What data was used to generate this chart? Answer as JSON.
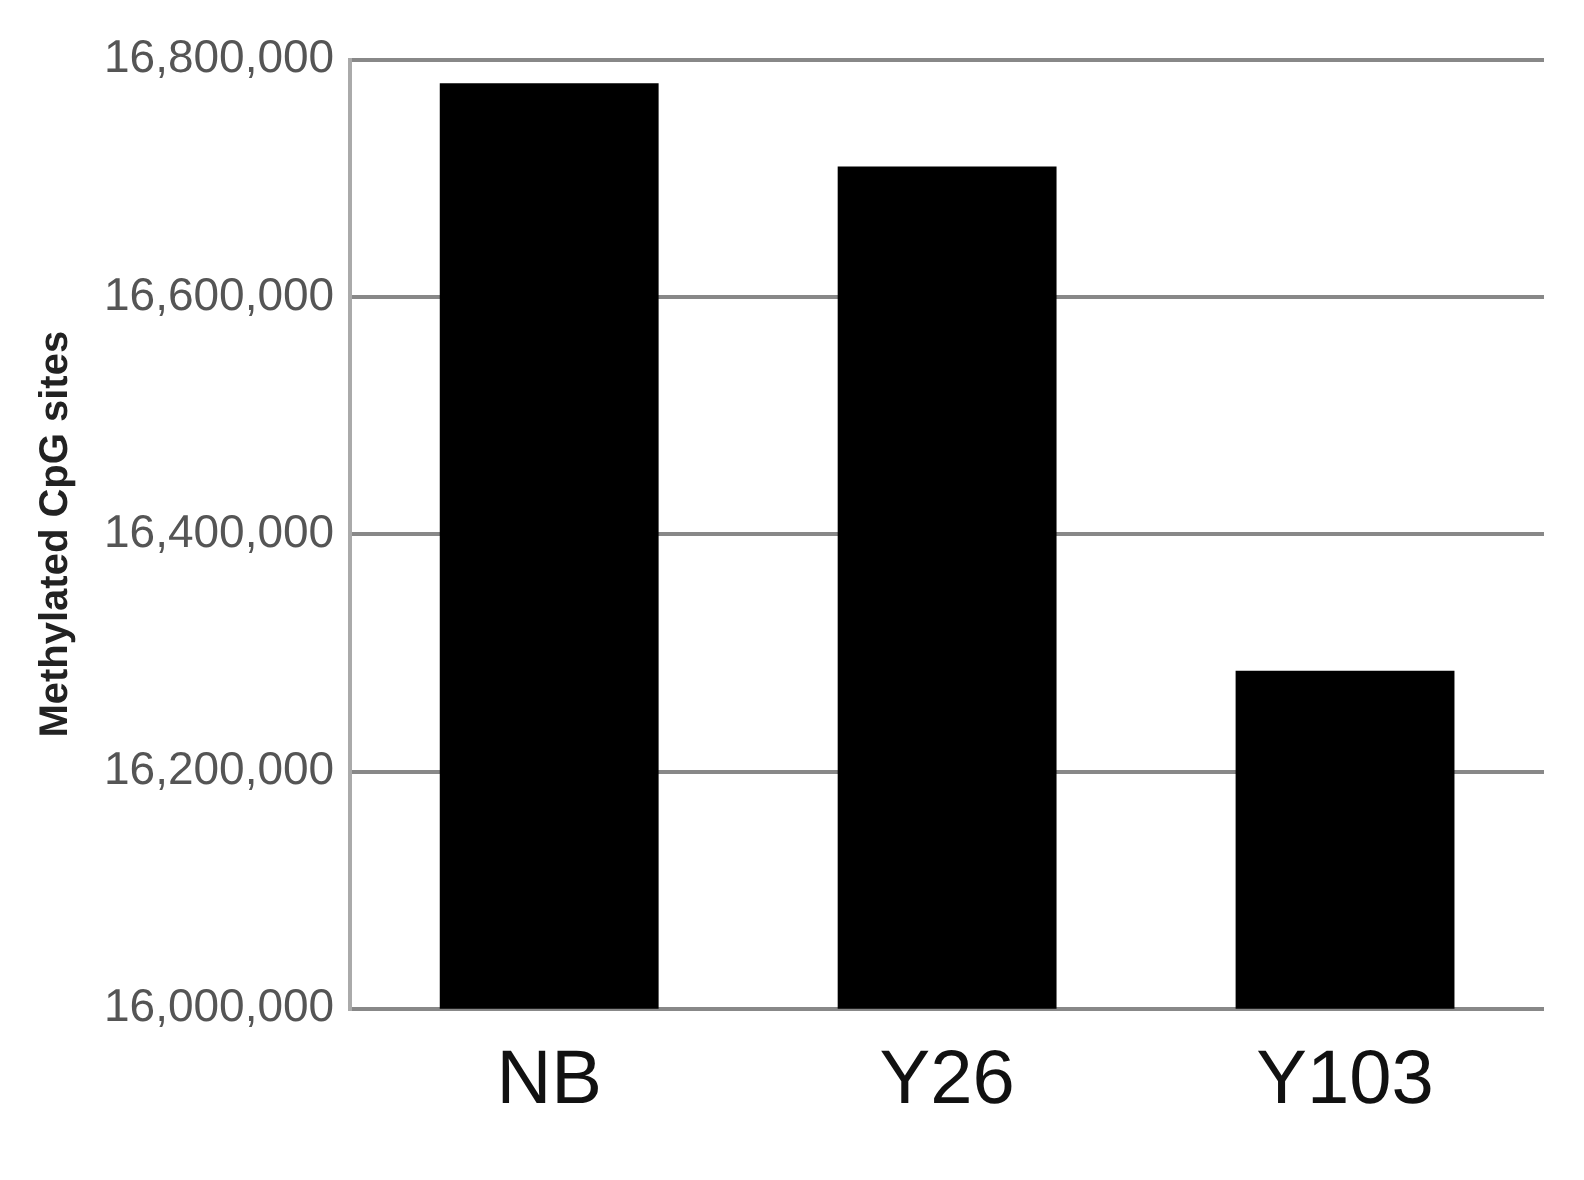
{
  "chart_data": {
    "type": "bar",
    "ylabel": "Methylated CpG sites",
    "categories": [
      "NB",
      "Y26",
      "Y103"
    ],
    "values": [
      16780000,
      16710000,
      16285000
    ],
    "color": "#000000",
    "ylim": [
      16000000,
      16800000
    ],
    "yticks": [
      {
        "value": 16000000,
        "label": "16,000,000"
      },
      {
        "value": 16200000,
        "label": "16,200,000"
      },
      {
        "value": 16400000,
        "label": "16,400,000"
      },
      {
        "value": 16600000,
        "label": "16,600,000"
      },
      {
        "value": 16800000,
        "label": "16,800,000"
      }
    ],
    "grid": "y",
    "legend": false
  }
}
